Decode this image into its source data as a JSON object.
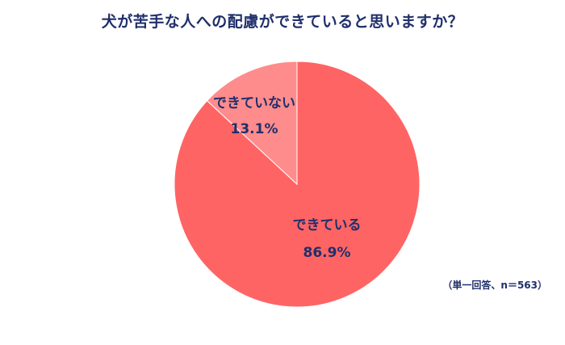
{
  "title": "犬が苦手な人への配慮ができていると思いますか？",
  "note": "（単一回答、n＝563）",
  "colors": {
    "text": "#1f2f6b",
    "slice_main": "#ff6464",
    "slice_minor": "#ff8c8c",
    "border": "#ffffff"
  },
  "chart_data": {
    "type": "pie",
    "title": "犬が苦手な人への配慮ができていると思いますか？",
    "start": "12 o'clock, clockwise",
    "slices": [
      {
        "label": "できている",
        "value": 86.9,
        "value_label": "86.9%",
        "color": "#ff6464"
      },
      {
        "label": "できていない",
        "value": 13.1,
        "value_label": "13.1%",
        "color": "#ff8c8c"
      }
    ]
  }
}
